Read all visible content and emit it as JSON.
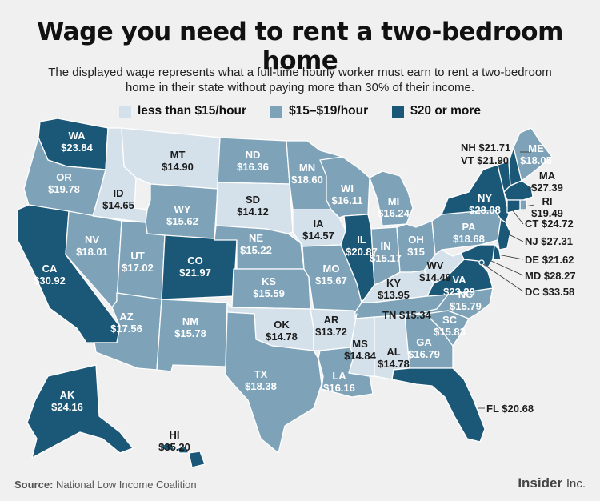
{
  "title": "Wage you need to rent a two-bedroom home",
  "subtitle": "The displayed wage represents what a full-time hourly worker must earn to rent a two-bedroom home in their state without paying more than 30% of their income.",
  "legend": [
    {
      "label": "less than $15/hour",
      "color": "#d5e1ea"
    },
    {
      "label": "$15–$19/hour",
      "color": "#7ea3b9"
    },
    {
      "label": "$20 or more",
      "color": "#1b5877"
    }
  ],
  "source_label": "Source:",
  "source_text": "National Low Income Coalition",
  "brand": {
    "name": "Insider",
    "suffix": "Inc."
  },
  "states": {
    "WA": {
      "abbr": "WA",
      "wage": "$23.84",
      "tier": 2
    },
    "OR": {
      "abbr": "OR",
      "wage": "$19.78",
      "tier": 1
    },
    "CA": {
      "abbr": "CA",
      "wage": "$30.92",
      "tier": 2
    },
    "NV": {
      "abbr": "NV",
      "wage": "$18.01",
      "tier": 1
    },
    "ID": {
      "abbr": "ID",
      "wage": "$14.65",
      "tier": 0
    },
    "MT": {
      "abbr": "MT",
      "wage": "$14.90",
      "tier": 0
    },
    "WY": {
      "abbr": "WY",
      "wage": "$15.62",
      "tier": 1
    },
    "UT": {
      "abbr": "UT",
      "wage": "$17.02",
      "tier": 1
    },
    "AZ": {
      "abbr": "AZ",
      "wage": "$17.56",
      "tier": 1
    },
    "CO": {
      "abbr": "CO",
      "wage": "$21.97",
      "tier": 2
    },
    "NM": {
      "abbr": "NM",
      "wage": "$15.78",
      "tier": 1
    },
    "ND": {
      "abbr": "ND",
      "wage": "$16.36",
      "tier": 1
    },
    "SD": {
      "abbr": "SD",
      "wage": "$14.12",
      "tier": 0
    },
    "NE": {
      "abbr": "NE",
      "wage": "$15.22",
      "tier": 1
    },
    "KS": {
      "abbr": "KS",
      "wage": "$15.59",
      "tier": 1
    },
    "OK": {
      "abbr": "OK",
      "wage": "$14.78",
      "tier": 0
    },
    "TX": {
      "abbr": "TX",
      "wage": "$18.38",
      "tier": 1
    },
    "MN": {
      "abbr": "MN",
      "wage": "$18.60",
      "tier": 1
    },
    "IA": {
      "abbr": "IA",
      "wage": "$14.57",
      "tier": 0
    },
    "MO": {
      "abbr": "MO",
      "wage": "$15.67",
      "tier": 1
    },
    "AR": {
      "abbr": "AR",
      "wage": "$13.72",
      "tier": 0
    },
    "LA": {
      "abbr": "LA",
      "wage": "$16.16",
      "tier": 1
    },
    "WI": {
      "abbr": "WI",
      "wage": "$16.11",
      "tier": 1
    },
    "IL": {
      "abbr": "IL",
      "wage": "$20.87",
      "tier": 2
    },
    "MI": {
      "abbr": "MI",
      "wage": "$16.24",
      "tier": 1
    },
    "IN": {
      "abbr": "IN",
      "wage": "$15.17",
      "tier": 1
    },
    "OH": {
      "abbr": "OH",
      "wage": "$15",
      "tier": 1
    },
    "KY": {
      "abbr": "KY",
      "wage": "$13.95",
      "tier": 0
    },
    "TN": {
      "abbr": "TN",
      "wage": "$15.34",
      "tier": 1
    },
    "MS": {
      "abbr": "MS",
      "wage": "$14.84",
      "tier": 0
    },
    "AL": {
      "abbr": "AL",
      "wage": "$14.78",
      "tier": 0
    },
    "GA": {
      "abbr": "GA",
      "wage": "$16.79",
      "tier": 1
    },
    "FL": {
      "abbr": "FL",
      "wage": "$20.68",
      "tier": 2
    },
    "SC": {
      "abbr": "SC",
      "wage": "$15.83",
      "tier": 1
    },
    "NC": {
      "abbr": "NC",
      "wage": "$15.79",
      "tier": 1
    },
    "VA": {
      "abbr": "VA",
      "wage": "$23.29",
      "tier": 2
    },
    "WV": {
      "abbr": "WV",
      "wage": "$14.49",
      "tier": 0
    },
    "PA": {
      "abbr": "PA",
      "wage": "$18.68",
      "tier": 1
    },
    "NY": {
      "abbr": "NY",
      "wage": "$28.08",
      "tier": 2
    },
    "VT": {
      "abbr": "VT",
      "wage": "$21.90",
      "tier": 2
    },
    "NH": {
      "abbr": "NH",
      "wage": "$21.71",
      "tier": 2
    },
    "ME": {
      "abbr": "ME",
      "wage": "$18.05",
      "tier": 1
    },
    "MA": {
      "abbr": "MA",
      "wage": "$27.39",
      "tier": 2
    },
    "RI": {
      "abbr": "RI",
      "wage": "$19.49",
      "tier": 1
    },
    "CT": {
      "abbr": "CT",
      "wage": "$24.72",
      "tier": 2
    },
    "NJ": {
      "abbr": "NJ",
      "wage": "$27.31",
      "tier": 2
    },
    "DE": {
      "abbr": "DE",
      "wage": "$21.62",
      "tier": 2
    },
    "MD": {
      "abbr": "MD",
      "wage": "$28.27",
      "tier": 2
    },
    "DC": {
      "abbr": "DC",
      "wage": "$33.58",
      "tier": 2
    },
    "AK": {
      "abbr": "AK",
      "wage": "$24.16",
      "tier": 2
    },
    "HI": {
      "abbr": "HI",
      "wage": "$35.20",
      "tier": 2
    }
  }
}
